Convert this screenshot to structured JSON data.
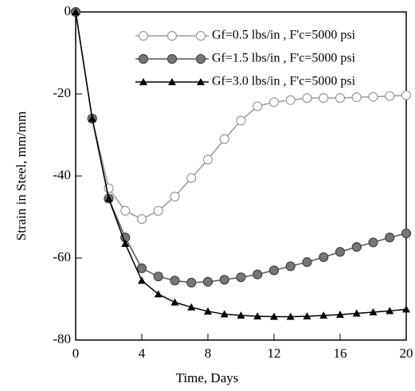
{
  "chart_data": {
    "type": "line",
    "x_label": "Time, Days",
    "y_label": "Strain in Steel, mm/mm",
    "x": [
      0,
      1,
      2,
      3,
      4,
      5,
      6,
      7,
      8,
      9,
      10,
      11,
      12,
      13,
      14,
      15,
      16,
      17,
      18,
      19,
      20
    ],
    "series": [
      {
        "name": "Gf=0.5 lbs/in , F'c=5000 psi",
        "color": "#999999",
        "marker": "open-circle",
        "values": [
          0,
          -26,
          -43,
          -48.5,
          -50.5,
          -48.5,
          -45,
          -40.5,
          -36,
          -31,
          -26.5,
          -23,
          -22,
          -21.5,
          -21,
          -21,
          -21,
          -20.8,
          -20.7,
          -20.5,
          -20.3
        ]
      },
      {
        "name": "Gf=1.5 lbs/in , F'c=5000 psi",
        "color": "#555555",
        "marker": "filled-circle",
        "values": [
          0,
          -26,
          -45.5,
          -55,
          -62.5,
          -64.5,
          -65.5,
          -66,
          -65.8,
          -65.3,
          -64.7,
          -64,
          -63,
          -62,
          -61,
          -59.8,
          -58.5,
          -57.3,
          -56.2,
          -55,
          -54
        ]
      },
      {
        "name": "Gf=3.0 lbs/in , F'c=5000 psi",
        "color": "#000000",
        "marker": "triangle",
        "values": [
          0,
          -26,
          -45.5,
          -56.5,
          -65.5,
          -68.8,
          -70.8,
          -72,
          -73,
          -73.7,
          -74,
          -74.2,
          -74.3,
          -74.3,
          -74.2,
          -74,
          -73.8,
          -73.5,
          -73.2,
          -72.9,
          -72.5
        ]
      }
    ],
    "xlim": [
      0,
      20
    ],
    "xticks": [
      0,
      4,
      8,
      12,
      16,
      20
    ],
    "ylim": [
      -80,
      0
    ],
    "yticks": [
      0,
      -20,
      -40,
      -60,
      -80
    ],
    "grid": false,
    "legend": "top-right"
  }
}
